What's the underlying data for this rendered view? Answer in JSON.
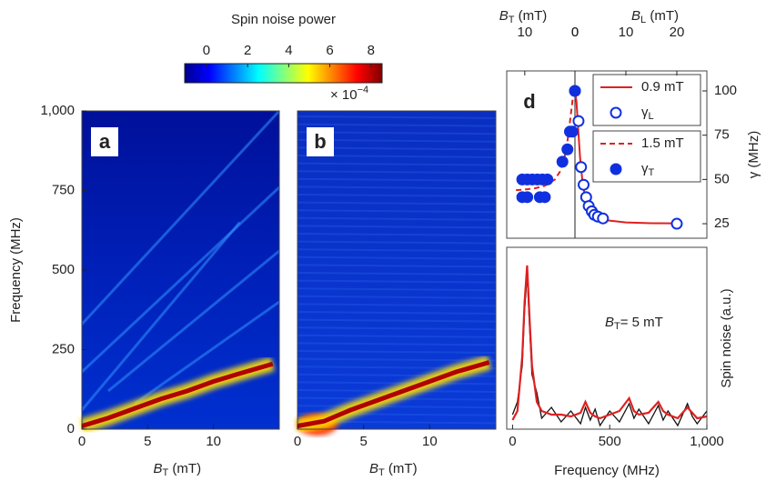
{
  "chart_data": [
    {
      "type": "colorbar",
      "title": "Spin noise power",
      "lim": [
        -1.06,
        8.54
      ],
      "ticks": [
        0,
        2,
        4,
        6,
        8
      ],
      "colors": [
        "#00008f",
        "#0000ff",
        "#0080ff",
        "#00ffff",
        "#80ff80",
        "#ffff00",
        "#ff8000",
        "#ff0000",
        "#800000"
      ],
      "multiplier": "× 10",
      "exponent": "−4"
    },
    {
      "type": "line",
      "panel": "a",
      "x": [
        0,
        2,
        4,
        6,
        8,
        10,
        12,
        14.5
      ],
      "values": [
        10,
        35,
        65,
        95,
        120,
        150,
        175,
        205
      ],
      "color": "#b00000",
      "xlim": [
        0,
        15
      ],
      "ylim": [
        0,
        1000
      ],
      "xticks": [
        0,
        5,
        10
      ],
      "yticks": [
        0,
        250,
        500,
        750,
        {
          "value": 1000,
          "label": "1,000"
        }
      ],
      "ylabel": "Frequency (MHz)",
      "xlabel": {
        "main": "B",
        "sub": "T",
        "rest": " (mT)"
      }
    },
    {
      "type": "line",
      "panel": "b",
      "x": [
        0,
        2,
        4,
        6,
        8,
        10,
        12,
        14.5
      ],
      "values": [
        10,
        25,
        60,
        90,
        120,
        150,
        180,
        210
      ],
      "color": "#b00000",
      "xlim": [
        0,
        15
      ],
      "ylim": [
        0,
        1000
      ],
      "xticks": [
        0,
        5,
        10
      ],
      "xlabel": {
        "main": "B",
        "sub": "T",
        "rest": " (mT)"
      }
    },
    {
      "type": "line",
      "panel": "c",
      "x": [
        0,
        25,
        50,
        62,
        75,
        88,
        100,
        125,
        150,
        200,
        250,
        300,
        350,
        375,
        400,
        425,
        450,
        500,
        550,
        600,
        625,
        650,
        700,
        750,
        775,
        800,
        850,
        900,
        925,
        950,
        1000
      ],
      "series": [
        {
          "color": "#111111",
          "values": [
            0.08,
            0.15,
            0.35,
            0.65,
            0.85,
            0.55,
            0.3,
            0.2,
            0.06,
            0.12,
            0.04,
            0.1,
            0.03,
            0.12,
            0.05,
            0.11,
            0.02,
            0.1,
            0.04,
            0.14,
            0.06,
            0.11,
            0.03,
            0.13,
            0.05,
            0.1,
            0.02,
            0.14,
            0.07,
            0.03,
            0.1
          ]
        },
        {
          "color": "#e02020",
          "values": [
            0.05,
            0.1,
            0.4,
            0.7,
            0.9,
            0.6,
            0.35,
            0.15,
            0.1,
            0.08,
            0.08,
            0.07,
            0.09,
            0.15,
            0.09,
            0.07,
            0.06,
            0.08,
            0.1,
            0.17,
            0.1,
            0.08,
            0.09,
            0.15,
            0.1,
            0.08,
            0.06,
            0.12,
            0.09,
            0.06,
            0.07
          ]
        }
      ],
      "xlim": [
        -30,
        1000
      ],
      "ylim": [
        0,
        1
      ],
      "xticks": [
        0,
        500,
        {
          "value": 1000,
          "label": "1,000"
        }
      ],
      "xlabel": "Frequency (MHz)",
      "ylabel": "Spin noise (a.u.)",
      "annotation": {
        "main": "B",
        "sub": "T",
        "rest": "= 5 mT"
      }
    },
    {
      "type": "scatter",
      "panel": "d",
      "xlim": [
        13.6,
        0
      ],
      "x2lim": [
        0,
        25.9
      ],
      "ylim": [
        16.8,
        111.3
      ],
      "xticks": [
        10,
        0
      ],
      "x2ticks": [
        0,
        10,
        20
      ],
      "yticks": [
        25,
        50,
        75,
        100
      ],
      "xlabel": {
        "main": "B",
        "sub": "T",
        "rest": " (mT)"
      },
      "x2label": {
        "main": "B",
        "sub": "L",
        "rest": " (mT)"
      },
      "ylabel": "γ (MHz)",
      "series": [
        {
          "name": "0.9 mT",
          "color": "#e02020",
          "style": "solid",
          "axis": "x2",
          "x": [
            0,
            0.3,
            0.6,
            1,
            1.5,
            2,
            3,
            4,
            6,
            10,
            15,
            20
          ],
          "values": [
            100,
            93.8,
            80.1,
            62.5,
            48.1,
            40,
            32.5,
            29.4,
            27,
            25.7,
            25.3,
            25.2
          ]
        },
        {
          "name": {
            "main": "γ",
            "sub": "L"
          },
          "color": "#1030e0",
          "style": "open",
          "axis": "x2",
          "x": [
            0,
            0.7,
            1.2,
            1.7,
            2.2,
            2.7,
            3.3,
            3.8,
            4.5,
            5.5,
            20
          ],
          "values": [
            100,
            83,
            57,
            47,
            40,
            35,
            32,
            30,
            29,
            28,
            25
          ]
        },
        {
          "name": "1.5 mT",
          "color": "#e02020",
          "style": "dashed",
          "axis": "x",
          "x": [
            0,
            0.5,
            1,
            1.5,
            2,
            3,
            4,
            6,
            8,
            10,
            12
          ],
          "values": [
            100,
            94.3,
            82.5,
            71.5,
            63.5,
            54.4,
            50,
            46.4,
            45,
            44.3,
            43.9
          ]
        },
        {
          "name": {
            "main": "γ",
            "sub": "T"
          },
          "color": "#1030e0",
          "style": "filled",
          "axis": "x",
          "x": [
            10.5,
            9.5,
            8.5,
            7.5,
            6.5,
            5.5,
            10.5,
            9.5,
            7,
            6,
            2.5,
            1.5,
            1,
            0.5,
            0
          ],
          "values": [
            50,
            50,
            50,
            50,
            50,
            50,
            40,
            40,
            40,
            40,
            60,
            67,
            77,
            77,
            100
          ]
        }
      ]
    }
  ]
}
